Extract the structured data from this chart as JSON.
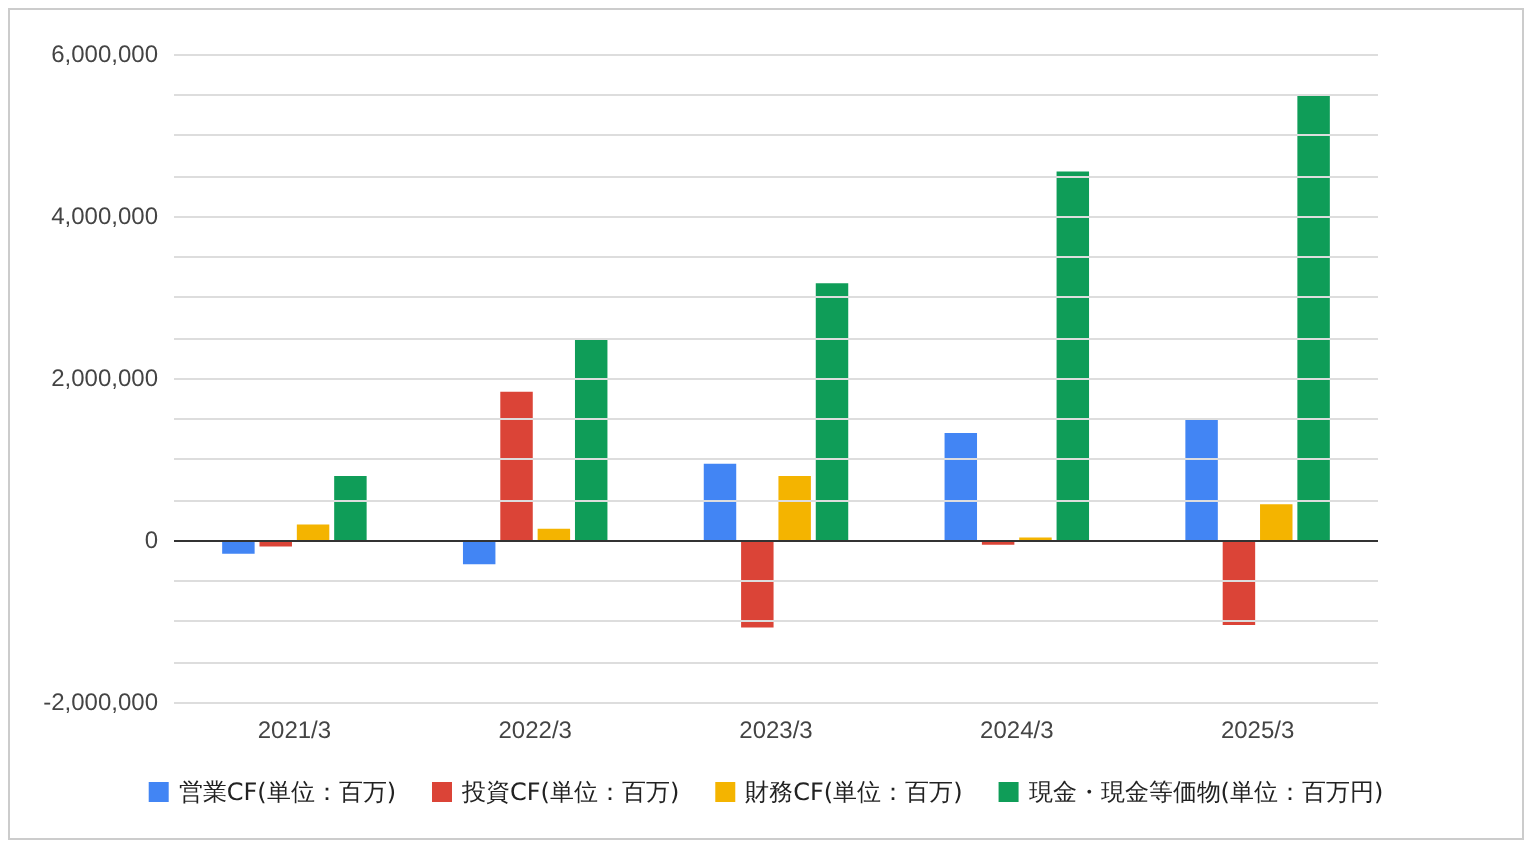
{
  "chart_data": {
    "type": "bar",
    "categories": [
      "2021/3",
      "2022/3",
      "2023/3",
      "2024/3",
      "2025/3"
    ],
    "series": [
      {
        "name": "営業CF(単位：百万)",
        "color": "#4285f4",
        "values": [
          -170000,
          -300000,
          940000,
          1320000,
          1500000
        ]
      },
      {
        "name": "投資CF(単位：百万)",
        "color": "#db4437",
        "values": [
          -80000,
          1830000,
          -1080000,
          -60000,
          -1050000
        ]
      },
      {
        "name": "財務CF(単位：百万)",
        "color": "#f4b400",
        "values": [
          190000,
          140000,
          790000,
          30000,
          440000
        ]
      },
      {
        "name": "現金・現金等価物(単位：百万円)",
        "color": "#0f9d58",
        "values": [
          790000,
          2480000,
          3170000,
          4550000,
          5500000
        ]
      }
    ],
    "ylim": [
      -2000000,
      6000000
    ],
    "yticks": [
      {
        "value": -2000000,
        "label": "-2,000,000"
      },
      {
        "value": -1500000,
        "label": null
      },
      {
        "value": -1000000,
        "label": null
      },
      {
        "value": -500000,
        "label": null
      },
      {
        "value": 0,
        "label": "0"
      },
      {
        "value": 500000,
        "label": null
      },
      {
        "value": 1000000,
        "label": null
      },
      {
        "value": 1500000,
        "label": null
      },
      {
        "value": 2000000,
        "label": "2,000,000"
      },
      {
        "value": 2500000,
        "label": null
      },
      {
        "value": 3000000,
        "label": null
      },
      {
        "value": 3500000,
        "label": null
      },
      {
        "value": 4000000,
        "label": "4,000,000"
      },
      {
        "value": 4500000,
        "label": null
      },
      {
        "value": 5000000,
        "label": null
      },
      {
        "value": 5500000,
        "label": null
      },
      {
        "value": 6000000,
        "label": "6,000,000"
      }
    ],
    "grid": true,
    "legend": "bottom"
  }
}
